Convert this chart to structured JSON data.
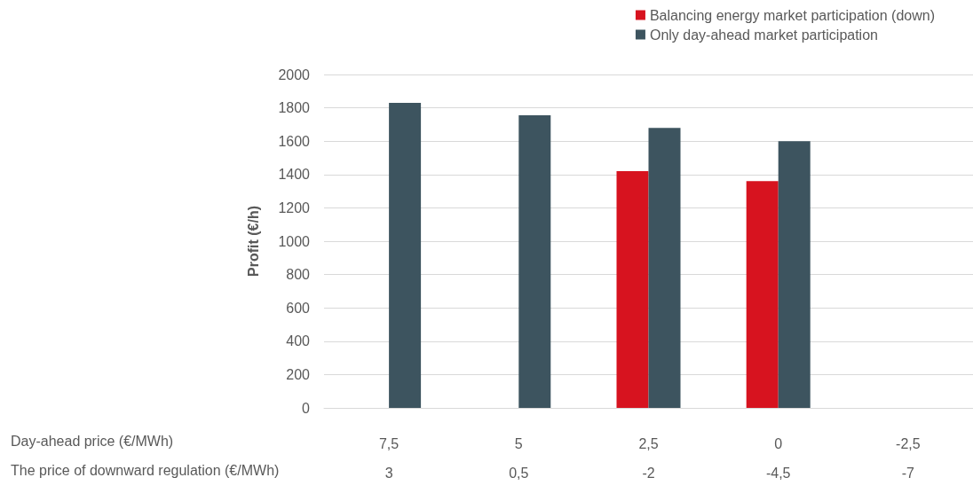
{
  "chart_data": {
    "type": "bar",
    "ylabel": "Profit (€/h)",
    "categories": [
      "7,5\n3",
      "5\n0,5",
      "2,5\n-2",
      "0\n-4,5",
      "-2,5\n-7"
    ],
    "series": [
      {
        "name": "Balancing energy market participation (down)",
        "color": "#d7131f",
        "values": [
          null,
          null,
          1420,
          1360,
          null
        ]
      },
      {
        "name": "Only day-ahead market participation",
        "color": "#3d545f",
        "values": [
          1830,
          1755,
          1680,
          1600,
          null
        ]
      }
    ],
    "ylim": [
      0,
      2000
    ],
    "yticks": [
      0,
      200,
      400,
      600,
      800,
      1000,
      1200,
      1400,
      1600,
      1800,
      2000
    ],
    "grid": "y",
    "legend": "top right",
    "annotations": [
      "Day-ahead price (€/MWh)",
      "The price of downward regulation (€/MWh)"
    ]
  }
}
